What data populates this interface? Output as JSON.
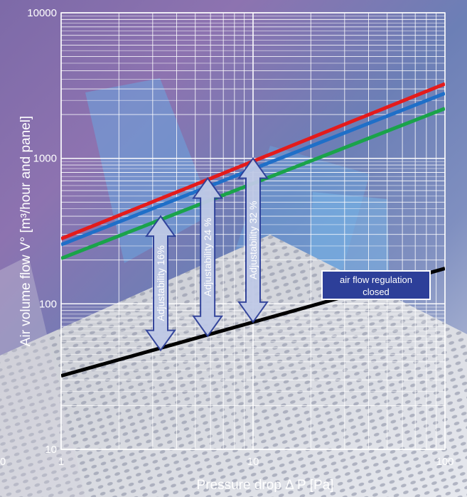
{
  "chart_data": {
    "type": "line",
    "x_scale": "log",
    "y_scale": "log",
    "xlim": [
      1,
      100
    ],
    "ylim": [
      10,
      10000
    ],
    "xlabel": "Pressure drop Δ P [Pa]",
    "ylabel": "Air volume flow V° [m³/hour and panel]",
    "x_ticks": [
      "1",
      "10",
      "100"
    ],
    "y_ticks": [
      "10",
      "100",
      "1000",
      "10000"
    ],
    "outside_tick_label": "0",
    "grid": true,
    "series": [
      {
        "color": "#e41b1b",
        "x": [
          1,
          100
        ],
        "y": [
          280,
          3250
        ]
      },
      {
        "color": "#1f6fc8",
        "x": [
          1,
          100
        ],
        "y": [
          255,
          2800
        ]
      },
      {
        "color": "#1aa34a",
        "x": [
          1,
          100
        ],
        "y": [
          205,
          2200
        ]
      },
      {
        "color": "#000000",
        "x": [
          1,
          100
        ],
        "y": [
          32,
          175
        ]
      }
    ],
    "annotations": [
      {
        "text": "Adjustability 16%",
        "x": 3.3,
        "y_from": 48,
        "y_to": 400
      },
      {
        "text": "Adjustability 24 %",
        "x": 5.8,
        "y_from": 60,
        "y_to": 730
      },
      {
        "text": "Adjustability 32 %",
        "x": 10,
        "y_from": 75,
        "y_to": 1000
      }
    ],
    "label_box": {
      "text_lines": [
        "air flow regulation",
        "closed"
      ]
    }
  }
}
